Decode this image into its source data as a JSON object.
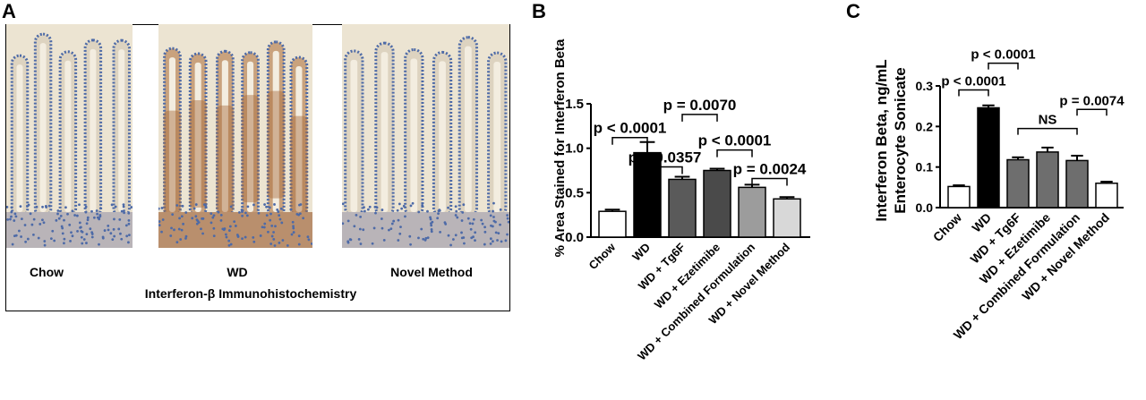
{
  "panels": {
    "a": {
      "letter": "A",
      "images": [
        {
          "label": "Chow",
          "stain": "low"
        },
        {
          "label": "WD",
          "stain": "high"
        },
        {
          "label": "Novel Method",
          "stain": "low"
        }
      ],
      "caption": "Interferon-β Immunohistochemistry",
      "colors": {
        "background": "#ece4d2",
        "nuclei": "#4d6aa7",
        "brown_stain": "#a86b3c"
      }
    },
    "b": {
      "letter": "B"
    },
    "c": {
      "letter": "C"
    }
  },
  "chart_data": [
    {
      "type": "bar",
      "panel": "B",
      "ylabel": "% Area Stained for Interferon Beta",
      "categories": [
        "Chow",
        "WD",
        "WD + Tg6F",
        "WD + Ezetimibe",
        "WD + Combined Formulation",
        "WD + Novel Method"
      ],
      "values": [
        0.29,
        0.95,
        0.65,
        0.75,
        0.56,
        0.43
      ],
      "errors": [
        0.02,
        0.12,
        0.03,
        0.02,
        0.03,
        0.02
      ],
      "bar_colors": [
        "#ffffff",
        "#000000",
        "#5a5a5a",
        "#4a4a4a",
        "#9c9c9c",
        "#d8d8d8"
      ],
      "ylim": [
        0,
        1.5
      ],
      "yticks": [
        "0.0",
        "0.5",
        "1.0",
        "1.5"
      ],
      "ytick_values": [
        0,
        0.5,
        1.0,
        1.5
      ],
      "comparisons": [
        {
          "label": "p < 0.0001",
          "from": 0,
          "to": 1,
          "y": 1.12
        },
        {
          "label": "p = 0.0357",
          "from": 1,
          "to": 2,
          "y": 0.79
        },
        {
          "label": "p = 0.0070",
          "from": 2,
          "to": 3,
          "y": 1.38
        },
        {
          "label": "p < 0.0001",
          "from": 3,
          "to": 4,
          "y": 0.98
        },
        {
          "label": "p = 0.0024",
          "from": 4,
          "to": 5,
          "y": 0.66
        }
      ]
    },
    {
      "type": "bar",
      "panel": "C",
      "ylabel": "Interferon Beta, ng/mL Enterocyte Sonicate",
      "ylabel_lines": [
        "Interferon Beta, ng/mL",
        "Enterocyte Sonicate"
      ],
      "categories": [
        "Chow",
        "WD",
        "WD + Tg6F",
        "WD + Ezetimibe",
        "WD + Combined Formulation",
        "WD + Novel Method"
      ],
      "values": [
        0.052,
        0.246,
        0.118,
        0.137,
        0.116,
        0.06
      ],
      "errors": [
        0.003,
        0.006,
        0.006,
        0.011,
        0.012,
        0.004
      ],
      "bar_colors": [
        "#ffffff",
        "#000000",
        "#6e6e6e",
        "#6e6e6e",
        "#6e6e6e",
        "#ffffff"
      ],
      "ylim": [
        0,
        0.3
      ],
      "yticks": [
        "0.0",
        "0.1",
        "0.2",
        "0.3"
      ],
      "ytick_values": [
        0,
        0.1,
        0.2,
        0.3
      ],
      "comparisons": [
        {
          "label": "p < 0.0001",
          "from": 0,
          "to": 1,
          "y": 0.29
        },
        {
          "label": "p < 0.0001",
          "from": 1,
          "to": 2,
          "y": 0.356
        },
        {
          "label": "NS",
          "from": 2,
          "to": 4,
          "y": 0.195
        },
        {
          "label": "p = 0.0074",
          "from": 4,
          "to": 5,
          "y": 0.242
        }
      ]
    }
  ]
}
